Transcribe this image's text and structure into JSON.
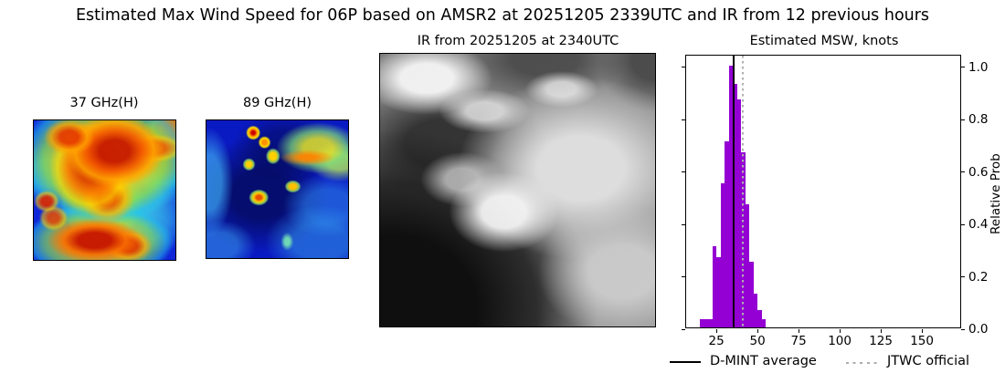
{
  "figure": {
    "title": "Estimated Max Wind Speed for 06P based on AMSR2 at 20251205 2339UTC and IR from 12 previous hours"
  },
  "panels": {
    "mw37": {
      "title": "37 GHz(H)",
      "colormap": "jet"
    },
    "mw89": {
      "title": "89 GHz(H)",
      "colormap": "jet"
    },
    "ir": {
      "title": "IR from 20251205 at 2340UTC",
      "colormap": "grayscale"
    }
  },
  "legend": {
    "dmint": "D-MINT average",
    "jtwc": "JTWC official"
  },
  "chart_data": {
    "type": "bar",
    "title": "Estimated MSW, knots",
    "ylabel": "Relative Prob",
    "bar_color": "#9400d3",
    "bin_width_knots": 2.5,
    "bins_start_knots": [
      15,
      17.5,
      20,
      22.5,
      25,
      27.5,
      30,
      32.5,
      35,
      37.5,
      40,
      42.5,
      45,
      47.5,
      50,
      52.5
    ],
    "values": [
      0.03,
      0.03,
      0.03,
      0.31,
      0.27,
      0.55,
      0.71,
      1.0,
      0.93,
      0.87,
      0.67,
      0.47,
      0.25,
      0.13,
      0.065,
      0.03
    ],
    "xticks": [
      25,
      50,
      75,
      100,
      125,
      150
    ],
    "yticks": [
      "0.0",
      "0.2",
      "0.4",
      "0.6",
      "0.8",
      "1.0"
    ],
    "xlim": [
      6.6,
      174.4
    ],
    "ylim": [
      0,
      1.045
    ],
    "grid": false,
    "legend_position": "below",
    "dmint_average_knots": 35.5,
    "jtwc_official_knots": 41,
    "dmint_line_color": "#000000",
    "jtwc_line_color": "#b0b0b0",
    "legend": [
      "D-MINT average",
      "JTWC official"
    ]
  }
}
